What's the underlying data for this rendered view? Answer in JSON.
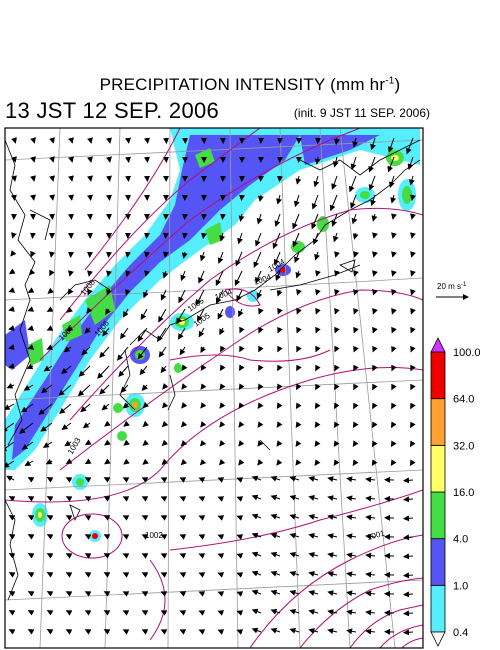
{
  "title": {
    "main_prefix": "PRECIPITATION INTENSITY (mm hr",
    "main_exp": "-1",
    "main_suffix": ")",
    "valid_time": "13 JST 12 SEP. 2006",
    "init_time": "(init. 9 JST 11 SEP. 2006)"
  },
  "wind_reference": {
    "label_prefix": "20 m s",
    "label_exp": "-1",
    "speed": 20
  },
  "colorbar": {
    "bins": [
      {
        "color": "#55eeff"
      },
      {
        "color": "#5555f5"
      },
      {
        "color": "#44dd44"
      },
      {
        "color": "#ffff66"
      },
      {
        "color": "#ffa030"
      },
      {
        "color": "#ee0000"
      }
    ],
    "tick_labels": [
      "0.4",
      "1.0",
      "4.0",
      "16.0",
      "32.0",
      "64.0",
      "100.0"
    ],
    "over_color": "#cc33ff",
    "under_color": "#ffffff"
  },
  "isobars": {
    "color": "#b0107a",
    "labels": [
      "1008",
      "1007",
      "1006",
      "1005",
      "1004",
      "1003",
      "1002",
      "1001"
    ]
  }
}
